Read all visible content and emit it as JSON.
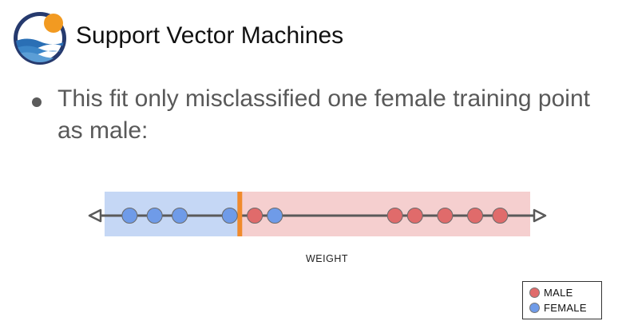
{
  "title": "Support Vector Machines",
  "bullet": "This fit only misclassified one female training point as male:",
  "logo": {
    "ring_color": "#263a6e",
    "sun_color": "#f29a21",
    "wave_colors": [
      "#2a6fb5",
      "#3c86c8",
      "#5b9ed6"
    ]
  },
  "chart_data": {
    "type": "scatter",
    "xlabel": "WEIGHT",
    "threshold": 5.4,
    "xlim": [
      0,
      17
    ],
    "regions": [
      {
        "class": "female",
        "from": 0,
        "to": 5.4,
        "color": "#c5d7f5"
      },
      {
        "class": "male",
        "from": 5.4,
        "to": 17,
        "color": "#f5cfcf"
      }
    ],
    "series": [
      {
        "name": "FEMALE",
        "color": "#6f9be8",
        "values": [
          1,
          2,
          3,
          5,
          6.8
        ]
      },
      {
        "name": "MALE",
        "color": "#e06b6b",
        "values": [
          6,
          11.6,
          12.4,
          13.6,
          14.8,
          15.8
        ]
      }
    ],
    "threshold_color": "#f08a2c",
    "axis_color": "#5a5a5a"
  },
  "legend": {
    "items": [
      {
        "label": "MALE",
        "color": "#e06b6b"
      },
      {
        "label": "FEMALE",
        "color": "#6f9be8"
      }
    ]
  }
}
